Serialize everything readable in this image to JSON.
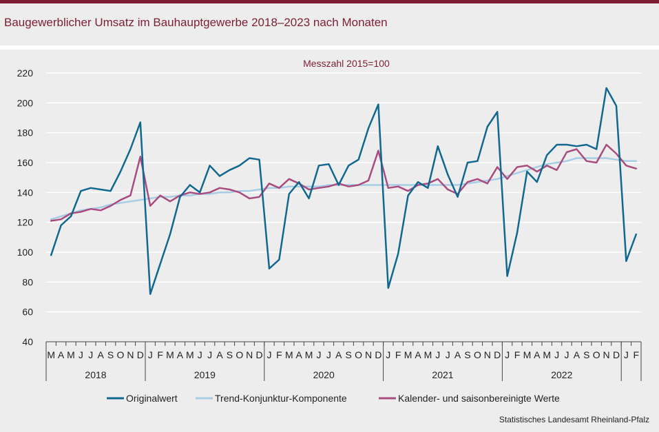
{
  "title": "Baugewerblicher Umsatz im Bauhauptgewerbe 2018–2023 nach Monaten",
  "source": "Statistisches Landesamt Rheinland-Pfalz",
  "chart_data": {
    "type": "line",
    "title": "Baugewerblicher Umsatz im Bauhauptgewerbe 2018–2023 nach Monaten",
    "ylabel": "Messzahl 2015=100",
    "xlabel": "",
    "ylim": [
      40,
      220
    ],
    "yticks": [
      40,
      60,
      80,
      100,
      120,
      140,
      160,
      180,
      200,
      220
    ],
    "grid": true,
    "legend_position": "bottom",
    "x": [
      "M",
      "A",
      "M",
      "J",
      "J",
      "A",
      "S",
      "O",
      "N",
      "D",
      "J",
      "F",
      "M",
      "A",
      "M",
      "J",
      "J",
      "A",
      "S",
      "O",
      "N",
      "D",
      "J",
      "F",
      "M",
      "A",
      "M",
      "J",
      "J",
      "A",
      "S",
      "O",
      "N",
      "D",
      "J",
      "F",
      "M",
      "A",
      "M",
      "J",
      "J",
      "A",
      "S",
      "O",
      "N",
      "D",
      "J",
      "F",
      "M",
      "A",
      "M",
      "J",
      "J",
      "A",
      "S",
      "O",
      "N",
      "D",
      "J",
      "F"
    ],
    "years": [
      {
        "label": "2018",
        "start": 0,
        "end": 10
      },
      {
        "label": "2019",
        "start": 10,
        "end": 22
      },
      {
        "label": "2020",
        "start": 22,
        "end": 34
      },
      {
        "label": "2021",
        "start": 34,
        "end": 46
      },
      {
        "label": "2022",
        "start": 46,
        "end": 58
      }
    ],
    "series": [
      {
        "name": "Originalwert",
        "color": "#10678f",
        "values": [
          98,
          118,
          124,
          141,
          143,
          142,
          141,
          154,
          169,
          187,
          72,
          92,
          112,
          137,
          145,
          140,
          158,
          151,
          155,
          158,
          163,
          162,
          89,
          95,
          139,
          147,
          136,
          158,
          159,
          145,
          158,
          162,
          183,
          199,
          76,
          99,
          138,
          147,
          143,
          171,
          152,
          137,
          160,
          161,
          184,
          194,
          84,
          113,
          154,
          147,
          165,
          172,
          172,
          171,
          172,
          169,
          210,
          198,
          94,
          112
        ]
      },
      {
        "name": "Trend-Konjunktur-Komponente",
        "color": "#a6cde3",
        "values": [
          122,
          124,
          126,
          128,
          129,
          130,
          132,
          133,
          134,
          135,
          136,
          137,
          137,
          138,
          138,
          139,
          139,
          140,
          140,
          141,
          141,
          142,
          143,
          143,
          144,
          144,
          144,
          144,
          145,
          145,
          145,
          145,
          145,
          145,
          145,
          145,
          145,
          145,
          145,
          145,
          145,
          145,
          146,
          147,
          148,
          149,
          151,
          153,
          155,
          157,
          159,
          160,
          161,
          163,
          163,
          163,
          163,
          162,
          161,
          161
        ]
      },
      {
        "name": "Kalender- und saisonbereinigte Werte",
        "color": "#a84c7f",
        "values": [
          121,
          122,
          126,
          127,
          129,
          128,
          131,
          135,
          138,
          164,
          131,
          138,
          134,
          138,
          140,
          139,
          140,
          143,
          142,
          140,
          136,
          137,
          146,
          143,
          149,
          146,
          142,
          143,
          144,
          146,
          144,
          145,
          148,
          168,
          143,
          144,
          141,
          145,
          146,
          149,
          142,
          139,
          147,
          149,
          146,
          157,
          149,
          157,
          158,
          154,
          158,
          155,
          167,
          169,
          161,
          160,
          172,
          166,
          158,
          156
        ]
      }
    ]
  }
}
